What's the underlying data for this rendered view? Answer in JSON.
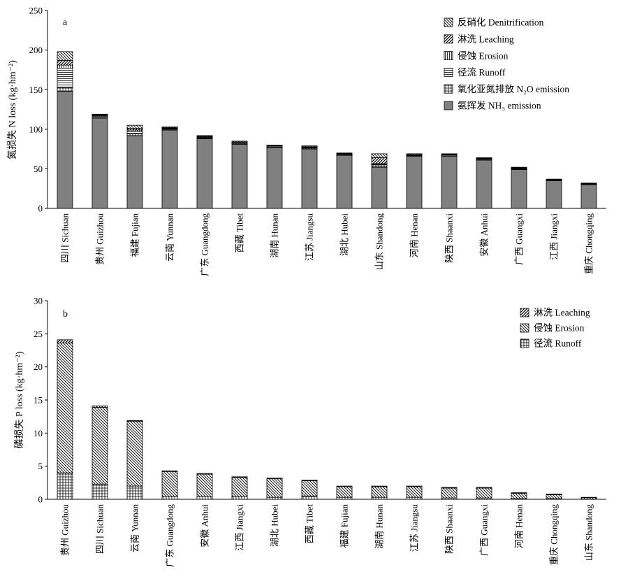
{
  "chart_data": [
    {
      "panel_label": "a",
      "type": "bar",
      "stacked": true,
      "ylabel": "氮损失 N loss (kg·hm⁻²)",
      "ylim": [
        0,
        250
      ],
      "yticks": [
        0,
        50,
        100,
        150,
        200,
        250
      ],
      "legend": "top-right",
      "categories": [
        "四川 Sichuan",
        "贵州 Guizhou",
        "福建 Fujian",
        "云南 Yunnan",
        "广东 Guangdong",
        "西藏 Tibet",
        "湖南 Hunan",
        "江苏 Jiangsu",
        "湖北 Hubei",
        "山东 Shandong",
        "河南 Henan",
        "陕西 Shaanxi",
        "安徽 Anhui",
        "广西 Guangxi",
        "江西 Jiangxi",
        "重庆 Chongqing"
      ],
      "series": [
        {
          "name": "氨挥发 NH₃ emission",
          "fill": "#808080",
          "values": [
            148,
            114,
            92,
            99,
            88,
            81,
            77,
            75,
            67,
            52,
            66,
            66,
            61,
            49,
            35,
            30
          ]
        },
        {
          "name": "氧化亚氮排放 N₂O emission",
          "pattern": "grid",
          "values": [
            5,
            1,
            2,
            1,
            1,
            0.5,
            0.5,
            1,
            0.5,
            3,
            0.5,
            0.5,
            0.5,
            0.5,
            0.5,
            0.5
          ]
        },
        {
          "name": "径流 Runoff",
          "pattern": "horizontal",
          "values": [
            24,
            2,
            3,
            1,
            1,
            1.5,
            1,
            1,
            1,
            1,
            0.5,
            1,
            1,
            1,
            0.5,
            0.5
          ]
        },
        {
          "name": "侵蚀 Erosion",
          "pattern": "vertical",
          "values": [
            4,
            1,
            2,
            0.5,
            0.5,
            0.5,
            0.5,
            0.5,
            0.5,
            0.5,
            0.5,
            0.5,
            0.5,
            0.5,
            0.5,
            0.5
          ]
        },
        {
          "name": "淋洗 Leaching",
          "pattern": "forward-diagonal",
          "values": [
            6,
            0.5,
            2,
            0.5,
            0.5,
            0.5,
            0.5,
            0.5,
            0.5,
            7.5,
            0.5,
            0.5,
            0.5,
            0.5,
            0.25,
            0.25
          ]
        },
        {
          "name": "反硝化 Denitrification",
          "pattern": "back-diagonal",
          "values": [
            11,
            0.5,
            4,
            1,
            1,
            1,
            0.5,
            1,
            0.5,
            5,
            1,
            0.5,
            0.5,
            0.5,
            0.25,
            0.25
          ]
        }
      ]
    },
    {
      "panel_label": "b",
      "type": "bar",
      "stacked": true,
      "ylabel": "磷损失 P loss (kg·hm⁻²)",
      "ylim": [
        0,
        30
      ],
      "yticks": [
        0,
        5,
        10,
        15,
        20,
        25,
        30
      ],
      "legend": "top-right",
      "categories": [
        "贵州 Guizhou",
        "四川 Sichuan",
        "云南 Yunnan",
        "广东 Guangdong",
        "安徽 Anhui",
        "江西 Jiangxi",
        "湖北 Hubei",
        "西藏 Tibet",
        "福建 Fujian",
        "湖南 Hunan",
        "江苏 Jiangsu",
        "陕西 Shaanxi",
        "广西 Guangxi",
        "河南 Henan",
        "重庆 Chongqing",
        "山东 Shandong"
      ],
      "series": [
        {
          "name": "径流 Runoff",
          "pattern": "grid",
          "values": [
            4.0,
            2.3,
            2.0,
            0.4,
            0.4,
            0.4,
            0.3,
            0.5,
            0.3,
            0.3,
            0.3,
            0.2,
            0.2,
            0.1,
            0.1,
            0.05
          ]
        },
        {
          "name": "侵蚀 Erosion",
          "pattern": "back-diagonal",
          "values": [
            19.6,
            11.6,
            9.8,
            3.8,
            3.4,
            2.9,
            2.8,
            2.3,
            1.6,
            1.6,
            1.6,
            1.5,
            1.5,
            0.8,
            0.6,
            0.2
          ]
        },
        {
          "name": "淋洗 Leaching",
          "pattern": "forward-diagonal",
          "values": [
            0.5,
            0.2,
            0.1,
            0.1,
            0.1,
            0.1,
            0.1,
            0.1,
            0.1,
            0.1,
            0.1,
            0.1,
            0.1,
            0.1,
            0.1,
            0.05
          ]
        }
      ]
    }
  ]
}
